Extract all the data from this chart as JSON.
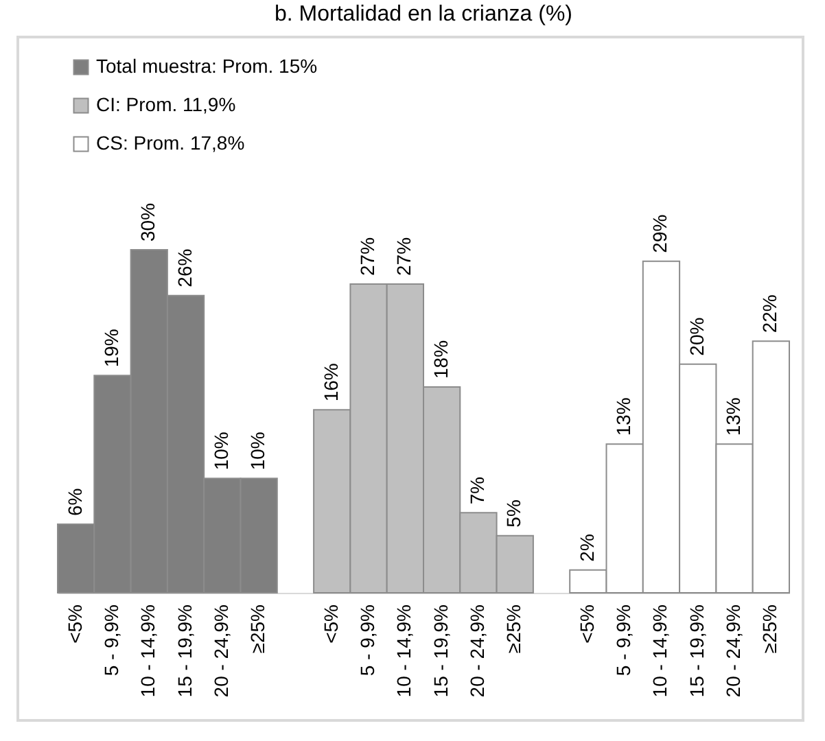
{
  "chart_data": {
    "type": "bar",
    "title": "b. Mortalidad en la crianza (%)",
    "categories": [
      "<5%",
      "5 - 9,9%",
      "10 - 14,9%",
      "15 - 19,9%",
      "20 - 24,9%",
      "≥25%",
      null,
      "<5%",
      "5 - 9,9%",
      "10 - 14,9%",
      "15 - 19,9%",
      "20 - 24,9%",
      "≥25%",
      null,
      "<5%",
      "5 - 9,9%",
      "10 - 14,9%",
      "15 - 19,9%",
      "20 - 24,9%",
      "≥25%"
    ],
    "series": [
      {
        "name": "Total muestra: Prom. 15%",
        "color": "#7f7f7f",
        "values": [
          6,
          19,
          30,
          26,
          10,
          10,
          null,
          null,
          null,
          null,
          null,
          null,
          null,
          null,
          null,
          null,
          null,
          null,
          null,
          null
        ],
        "value_labels": [
          "6%",
          "19%",
          "30%",
          "26%",
          "10%",
          "10%",
          null,
          null,
          null,
          null,
          null,
          null,
          null,
          null,
          null,
          null,
          null,
          null,
          null,
          null
        ]
      },
      {
        "name": "CI: Prom. 11,9%",
        "color": "#bfbfbf",
        "values": [
          null,
          null,
          null,
          null,
          null,
          null,
          null,
          16,
          27,
          27,
          18,
          7,
          5,
          null,
          null,
          null,
          null,
          null,
          null,
          null
        ],
        "value_labels": [
          null,
          null,
          null,
          null,
          null,
          null,
          null,
          "16%",
          "27%",
          "27%",
          "18%",
          "7%",
          "5%",
          null,
          null,
          null,
          null,
          null,
          null,
          null
        ]
      },
      {
        "name": "CS: Prom. 17,8%",
        "color": "#ffffff",
        "values": [
          null,
          null,
          null,
          null,
          null,
          null,
          null,
          null,
          null,
          null,
          null,
          null,
          null,
          null,
          2,
          13,
          29,
          20,
          13,
          22
        ],
        "value_labels": [
          null,
          null,
          null,
          null,
          null,
          null,
          null,
          null,
          null,
          null,
          null,
          null,
          null,
          null,
          "2%",
          "13%",
          "29%",
          "20%",
          "13%",
          "22%"
        ]
      }
    ],
    "legend": "top left"
  }
}
